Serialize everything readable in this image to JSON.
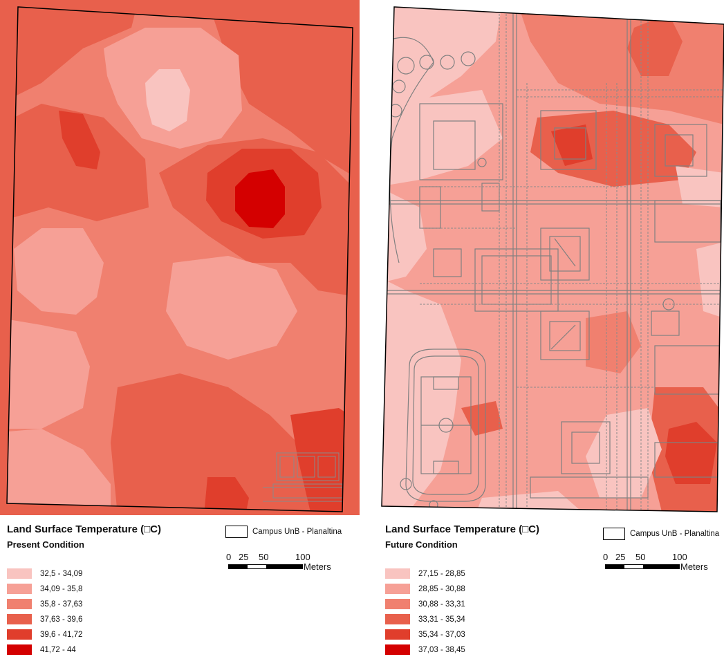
{
  "panels": [
    {
      "legend_title": "Land Surface Temperature (□C)",
      "condition": "Present Condition",
      "classes": [
        {
          "label": "32,5 - 34,09",
          "color": "#f9c4c0"
        },
        {
          "label": "34,09 - 35,8",
          "color": "#f6a096"
        },
        {
          "label": "35,8 - 37,63",
          "color": "#f0806f"
        },
        {
          "label": "37,63 - 39,6",
          "color": "#e8604c"
        },
        {
          "label": "39,6 - 41,72",
          "color": "#e03e2c"
        },
        {
          "label": "41,72 - 44",
          "color": "#d40000"
        }
      ],
      "boundary_label": "Campus UnB - Planaltina",
      "scale": {
        "ticks": [
          "0",
          "25",
          "50",
          "100"
        ],
        "unit": "Meters"
      }
    },
    {
      "legend_title": "Land Surface Temperature (□C)",
      "condition": "Future Condition",
      "classes": [
        {
          "label": "27,15 - 28,85",
          "color": "#f9c4c0"
        },
        {
          "label": "28,85 - 30,88",
          "color": "#f6a096"
        },
        {
          "label": "30,88 - 33,31",
          "color": "#f0806f"
        },
        {
          "label": "33,31 - 35,34",
          "color": "#e8604c"
        },
        {
          "label": "35,34 - 37,03",
          "color": "#e03e2c"
        },
        {
          "label": "37,03 - 38,45",
          "color": "#d40000"
        }
      ],
      "boundary_label": "Campus UnB - Planaltina",
      "scale": {
        "ticks": [
          "0",
          "25",
          "50",
          "100"
        ],
        "unit": "Meters"
      }
    }
  ]
}
